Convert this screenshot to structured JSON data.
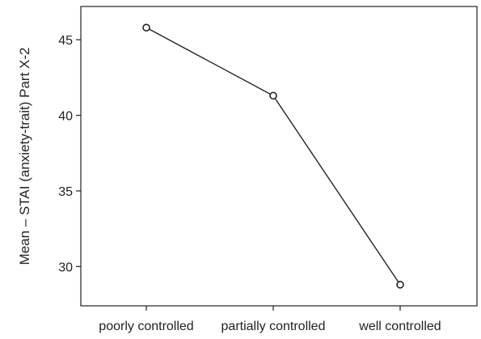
{
  "chart_data": {
    "type": "line",
    "title": "",
    "xlabel": "",
    "ylabel": "Mean – STAI (anxiety-trait) Part X-2",
    "categories": [
      "poorly controlled",
      "partially controlled",
      "well controlled"
    ],
    "series": [
      {
        "values": [
          45.8,
          41.3,
          28.8
        ]
      }
    ],
    "ylim": [
      27.4,
      47.2
    ],
    "yticks": [
      30,
      35,
      40,
      45
    ],
    "grid": false,
    "colors": {
      "line": "#222222",
      "marker_fill": "#ffffff"
    }
  }
}
